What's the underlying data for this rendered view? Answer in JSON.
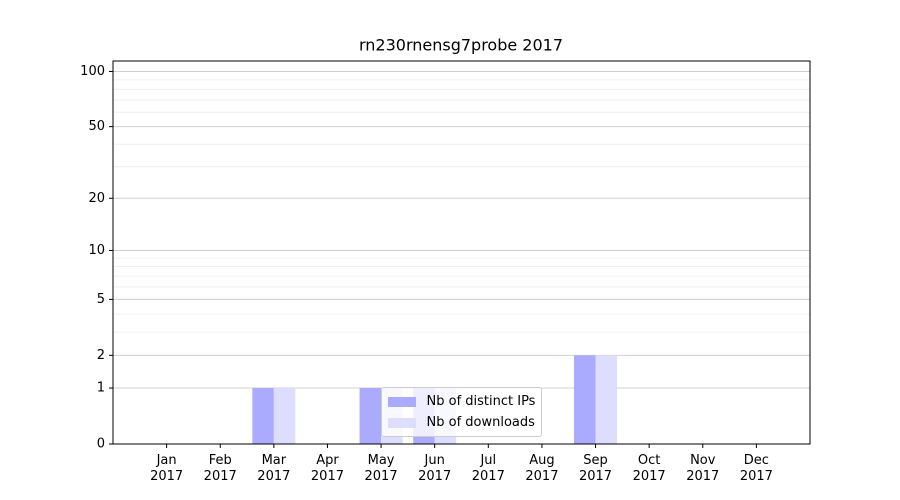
{
  "chart_data": {
    "type": "bar",
    "title": "rn230rnensg7probe 2017",
    "categories": [
      "Jan\n2017",
      "Feb\n2017",
      "Mar\n2017",
      "Apr\n2017",
      "May\n2017",
      "Jun\n2017",
      "Jul\n2017",
      "Aug\n2017",
      "Sep\n2017",
      "Oct\n2017",
      "Nov\n2017",
      "Dec\n2017"
    ],
    "series": [
      {
        "name": "Nb of distinct IPs",
        "color": "#aaaaff",
        "values": [
          0,
          0,
          1,
          0,
          1,
          1,
          0,
          0,
          2,
          0,
          0,
          0
        ]
      },
      {
        "name": "Nb of downloads",
        "color": "#ddddff",
        "values": [
          0,
          0,
          1,
          0,
          1,
          1,
          0,
          0,
          2,
          0,
          0,
          0
        ]
      }
    ],
    "yscale": "symlog",
    "ylim": [
      0,
      114
    ],
    "yticks": [
      0,
      1,
      2,
      5,
      10,
      20,
      50,
      100
    ],
    "yminorticks": [
      3,
      4,
      6,
      7,
      8,
      9,
      30,
      40,
      60,
      70,
      80,
      90
    ],
    "grid": true,
    "legend": "lower center"
  }
}
